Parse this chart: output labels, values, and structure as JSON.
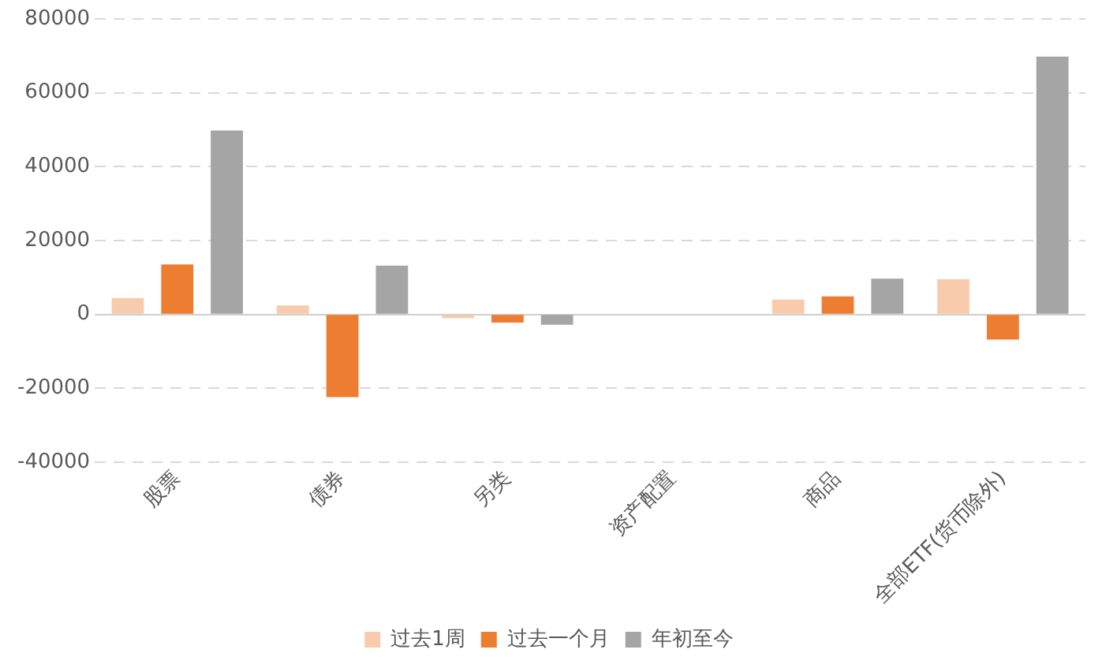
{
  "chart_data": {
    "type": "bar",
    "categories": [
      "股票",
      "债券",
      "另类",
      "资产配置",
      "商品",
      "全部ETF(货币除外)"
    ],
    "series": [
      {
        "name": "过去1周",
        "color": "#f8cbad",
        "values": [
          4400,
          2400,
          -1000,
          0,
          4000,
          9500
        ]
      },
      {
        "name": "过去一个月",
        "color": "#ed7d31",
        "values": [
          13500,
          -22400,
          -2200,
          0,
          4900,
          -6800
        ]
      },
      {
        "name": "年初至今",
        "color": "#a5a5a5",
        "values": [
          49800,
          13200,
          -2800,
          0,
          9700,
          69800
        ]
      }
    ],
    "ylim": [
      -40000,
      80000
    ],
    "yticks": [
      -40000,
      -20000,
      0,
      20000,
      40000,
      60000,
      80000
    ],
    "grid": "y",
    "legend": "bottom"
  }
}
